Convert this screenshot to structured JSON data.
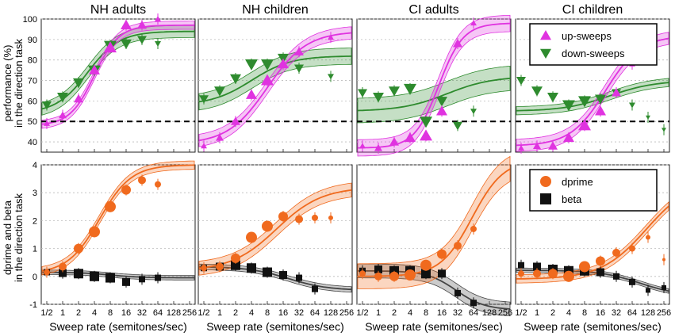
{
  "colors": {
    "magenta": "#e033e0",
    "green": "#2e8b2e",
    "orange": "#f06a1e",
    "black": "#111111"
  },
  "labels": {
    "ylabel_top_line1": "performance (%)",
    "ylabel_top_line2": "in the direction task",
    "ylabel_bottom_line1": "dprime and beta",
    "ylabel_bottom_line2": "in the direction task",
    "xlabel": "Sweep rate (semitones/sec)"
  },
  "chart_data": {
    "type": "scatter",
    "panel_titles": [
      "NH adults",
      "NH children",
      "CI adults",
      "CI children"
    ],
    "x_ticks": [
      0.5,
      1,
      2,
      4,
      8,
      16,
      32,
      64,
      128,
      256
    ],
    "x_tick_labels": [
      "1/2",
      "1",
      "2",
      "4",
      "8",
      "16",
      "32",
      "64",
      "128",
      "256"
    ],
    "x_scale": "log2",
    "top": {
      "ylabel": "performance (%) in the direction task",
      "ylim": [
        35,
        100
      ],
      "y_ticks": [
        40,
        50,
        60,
        70,
        80,
        90,
        100
      ],
      "chance_line": 50,
      "legend": [
        "up-sweeps",
        "down-sweeps"
      ],
      "legend_location": "top-right of CI children panel",
      "panels": [
        {
          "name": "NH adults",
          "up_points": [
            [
              0.5,
              49
            ],
            [
              1,
              53
            ],
            [
              2,
              61
            ],
            [
              4,
              75
            ],
            [
              8,
              86
            ],
            [
              16,
              97
            ],
            [
              32,
              97
            ],
            [
              64,
              100
            ]
          ],
          "down_points": [
            [
              0.5,
              58
            ],
            [
              1,
              62
            ],
            [
              2,
              69
            ],
            [
              4,
              75
            ],
            [
              8,
              87
            ],
            [
              16,
              88
            ],
            [
              32,
              90
            ],
            [
              64,
              88
            ]
          ],
          "up_fit": {
            "floor": 48,
            "ceil": 97,
            "mid": 4,
            "slope": 1.3,
            "band": 2
          },
          "down_fit": {
            "floor": 54,
            "ceil": 94,
            "mid": 3,
            "slope": 1.0,
            "band": 3
          }
        },
        {
          "name": "NH children",
          "up_points": [
            [
              0.5,
              38
            ],
            [
              1,
              42
            ],
            [
              2,
              50
            ],
            [
              4,
              63
            ],
            [
              8,
              70
            ],
            [
              16,
              78
            ],
            [
              32,
              84
            ],
            [
              128,
              91
            ]
          ],
          "down_points": [
            [
              0.5,
              61
            ],
            [
              1,
              65
            ],
            [
              2,
              71
            ],
            [
              4,
              78
            ],
            [
              8,
              78
            ],
            [
              16,
              81
            ],
            [
              32,
              76
            ],
            [
              128,
              72
            ]
          ],
          "up_fit": {
            "floor": 39,
            "ceil": 94,
            "mid": 8,
            "slope": 0.8,
            "band": 3
          },
          "down_fit": {
            "floor": 58,
            "ceil": 82,
            "mid": 4,
            "slope": 0.8,
            "band": 4
          }
        },
        {
          "name": "CI adults",
          "up_points": [
            [
              0.5,
              38
            ],
            [
              1,
              37
            ],
            [
              2,
              40
            ],
            [
              4,
              42
            ],
            [
              8,
              43
            ],
            [
              16,
              55
            ],
            [
              32,
              88
            ],
            [
              64,
              98
            ]
          ],
          "down_points": [
            [
              0.5,
              64
            ],
            [
              1,
              62
            ],
            [
              2,
              65
            ],
            [
              4,
              66
            ],
            [
              8,
              50
            ],
            [
              16,
              60
            ],
            [
              32,
              48
            ],
            [
              64,
              55
            ]
          ],
          "up_fit": {
            "floor": 37,
            "ceil": 98,
            "mid": 14,
            "slope": 1.3,
            "band": 4
          },
          "down_fit": {
            "floor": 55,
            "ceil": 72,
            "mid": 20,
            "slope": 0.7,
            "band": 6
          }
        },
        {
          "name": "CI children",
          "up_points": [
            [
              0.5,
              37
            ],
            [
              1,
              38
            ],
            [
              2,
              38
            ],
            [
              4,
              42
            ],
            [
              8,
              48
            ],
            [
              16,
              55
            ],
            [
              32,
              64
            ],
            [
              64,
              78
            ],
            [
              128,
              88
            ]
          ],
          "down_points": [
            [
              0.5,
              70
            ],
            [
              1,
              65
            ],
            [
              2,
              62
            ],
            [
              4,
              58
            ],
            [
              8,
              60
            ],
            [
              16,
              61
            ],
            [
              32,
              64
            ],
            [
              64,
              58
            ],
            [
              128,
              52
            ],
            [
              256,
              46
            ]
          ],
          "up_fit": {
            "floor": 38,
            "ceil": 92,
            "mid": 20,
            "slope": 0.9,
            "band": 3
          },
          "down_fit": {
            "floor": 55,
            "ceil": 70,
            "mid": 24,
            "slope": 0.7,
            "band": 2
          }
        }
      ]
    },
    "bottom": {
      "ylabel": "dprime and beta in the direction task",
      "ylim": [
        -1,
        4
      ],
      "y_ticks": [
        -1,
        0,
        1,
        2,
        3,
        4
      ],
      "legend": [
        "dprime",
        "beta"
      ],
      "legend_location": "top-right of CI children panel",
      "panels": [
        {
          "name": "NH adults",
          "dprime_points": [
            [
              0.5,
              0.15
            ],
            [
              1,
              0.35
            ],
            [
              2,
              1.0
            ],
            [
              4,
              1.6
            ],
            [
              8,
              2.5
            ],
            [
              16,
              3.1
            ],
            [
              32,
              3.45
            ],
            [
              64,
              3.3
            ]
          ],
          "beta_points": [
            [
              0.5,
              0.15
            ],
            [
              1,
              0.12
            ],
            [
              2,
              0.1
            ],
            [
              4,
              0.0
            ],
            [
              8,
              -0.05
            ],
            [
              16,
              -0.2
            ],
            [
              32,
              -0.1
            ],
            [
              64,
              -0.05
            ]
          ],
          "dprime_fit": {
            "floor": 0.1,
            "ceil": 4.0,
            "mid": 5,
            "slope": 1.0,
            "band": 0.15
          },
          "beta_fit": {
            "floor": 0.15,
            "ceil": -0.05,
            "mid": 8,
            "slope": 1.0,
            "band": 0.08
          }
        },
        {
          "name": "NH children",
          "dprime_points": [
            [
              0.5,
              0.3
            ],
            [
              1,
              0.35
            ],
            [
              2,
              0.65
            ],
            [
              4,
              1.4
            ],
            [
              8,
              1.8
            ],
            [
              16,
              2.15
            ],
            [
              32,
              2.05
            ],
            [
              64,
              2.1
            ],
            [
              128,
              2.1
            ]
          ],
          "beta_points": [
            [
              0.5,
              0.3
            ],
            [
              1,
              0.35
            ],
            [
              2,
              0.4
            ],
            [
              4,
              0.3
            ],
            [
              8,
              0.15
            ],
            [
              16,
              0.05
            ],
            [
              32,
              -0.05
            ],
            [
              64,
              -0.45
            ]
          ],
          "dprime_fit": {
            "floor": 0.2,
            "ceil": 3.2,
            "mid": 12,
            "slope": 0.7,
            "band": 0.25
          },
          "beta_fit": {
            "floor": 0.35,
            "ceil": -0.5,
            "mid": 20,
            "slope": 0.8,
            "band": 0.1
          }
        },
        {
          "name": "CI adults",
          "dprime_points": [
            [
              0.5,
              0.1
            ],
            [
              1,
              0.0
            ],
            [
              2,
              0.0
            ],
            [
              4,
              0.05
            ],
            [
              8,
              0.4
            ],
            [
              16,
              0.8
            ],
            [
              32,
              1.1
            ],
            [
              64,
              1.7
            ]
          ],
          "beta_points": [
            [
              0.5,
              0.2
            ],
            [
              1,
              0.25
            ],
            [
              2,
              0.2
            ],
            [
              4,
              0.2
            ],
            [
              8,
              0.1
            ],
            [
              16,
              0.1
            ],
            [
              32,
              -0.6
            ],
            [
              64,
              -0.95
            ]
          ],
          "dprime_fit": {
            "floor": 0.0,
            "ceil": 4.2,
            "mid": 60,
            "slope": 1.0,
            "band": 0.45
          },
          "beta_fit": {
            "floor": 0.2,
            "ceil": -1.2,
            "mid": 30,
            "slope": 1.1,
            "band": 0.25
          }
        },
        {
          "name": "CI children",
          "dprime_points": [
            [
              0.5,
              0.1
            ],
            [
              1,
              0.1
            ],
            [
              2,
              0.1
            ],
            [
              4,
              0.0
            ],
            [
              8,
              0.35
            ],
            [
              16,
              0.55
            ],
            [
              32,
              0.85
            ],
            [
              64,
              1.0
            ],
            [
              128,
              1.4
            ],
            [
              256,
              0.6
            ]
          ],
          "beta_points": [
            [
              0.5,
              0.4
            ],
            [
              1,
              0.35
            ],
            [
              2,
              0.25
            ],
            [
              4,
              0.2
            ],
            [
              8,
              0.2
            ],
            [
              16,
              0.15
            ],
            [
              32,
              0.0
            ],
            [
              64,
              -0.2
            ],
            [
              128,
              -0.5
            ],
            [
              256,
              -0.4
            ]
          ],
          "dprime_fit": {
            "floor": -0.1,
            "ceil": 3.5,
            "mid": 120,
            "slope": 0.7,
            "band": 0.15
          },
          "beta_fit": {
            "floor": 0.22,
            "ceil": -0.7,
            "mid": 90,
            "slope": 0.8,
            "band": 0.08
          }
        }
      ]
    }
  }
}
